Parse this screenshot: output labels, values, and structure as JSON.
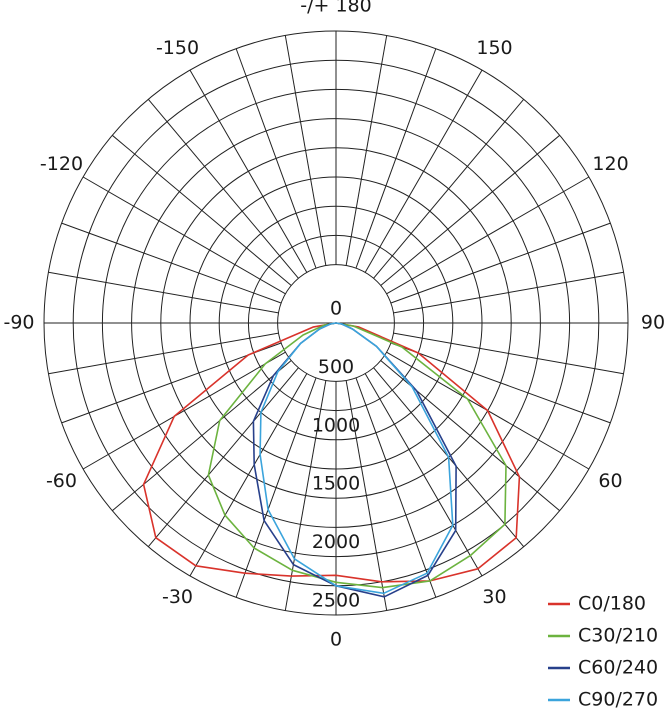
{
  "chart_data": {
    "type": "polar",
    "angle_ticks": [
      {
        "value": 180,
        "label": "-/+ 180"
      },
      150,
      120,
      90,
      60,
      30,
      0,
      -30,
      -60,
      -90,
      -120,
      -150
    ],
    "rlim": [
      0,
      2500
    ],
    "rticks": [
      0,
      500,
      1000,
      1500,
      2000,
      2500
    ],
    "angles": [
      -90,
      -80,
      -70,
      -60,
      -50,
      -40,
      -30,
      -20,
      -10,
      0,
      10,
      20,
      30,
      40,
      50,
      60,
      70,
      80,
      90
    ],
    "legend": "lower right",
    "series": [
      {
        "name": "C0/180",
        "color": "#d9332b",
        "values": [
          0,
          200,
          800,
          1600,
          2150,
          2400,
          2400,
          2280,
          2200,
          2160,
          2250,
          2350,
          2430,
          2400,
          2050,
          1500,
          750,
          200,
          0
        ]
      },
      {
        "name": "C30/210",
        "color": "#6cb33f",
        "values": [
          0,
          100,
          300,
          700,
          1300,
          1700,
          1900,
          2050,
          2150,
          2220,
          2300,
          2350,
          2300,
          2250,
          1900,
          1300,
          600,
          150,
          0
        ]
      },
      {
        "name": "C60/240",
        "color": "#27408b",
        "values": [
          0,
          50,
          150,
          350,
          700,
          1100,
          1400,
          1800,
          2100,
          2250,
          2380,
          2300,
          2050,
          1600,
          900,
          400,
          150,
          50,
          0
        ]
      },
      {
        "name": "C90/270",
        "color": "#3ba4dc",
        "values": [
          0,
          50,
          150,
          350,
          650,
          1000,
          1300,
          1700,
          2050,
          2250,
          2350,
          2280,
          2000,
          1500,
          850,
          400,
          150,
          50,
          0
        ]
      }
    ]
  }
}
